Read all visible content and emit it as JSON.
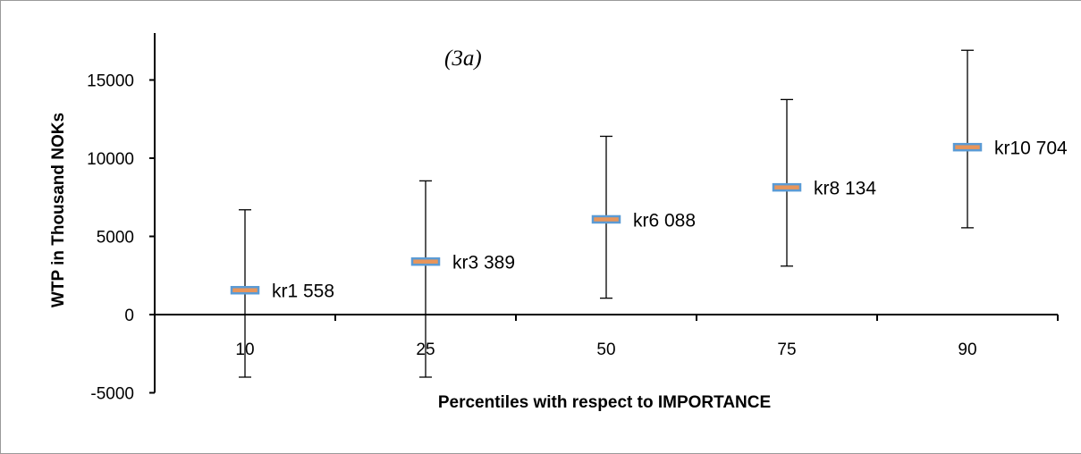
{
  "chart_data": {
    "type": "error-bar",
    "title": "(3a)",
    "xlabel": "Percentiles  with respect to IMPORTANCE",
    "ylabel": "WTP in Thousand NOKs",
    "ylim": [
      -5000,
      18000
    ],
    "yticks": [
      -5000,
      0,
      5000,
      10000,
      15000
    ],
    "categories": [
      "10",
      "25",
      "50",
      "75",
      "90"
    ],
    "points": [
      {
        "category": "10",
        "value": 1558,
        "low": -4000,
        "high": 6700,
        "label": "kr1 558"
      },
      {
        "category": "25",
        "value": 3389,
        "low": -4000,
        "high": 8550,
        "label": "kr3 389"
      },
      {
        "category": "50",
        "value": 6088,
        "low": 1050,
        "high": 11400,
        "label": "kr6 088"
      },
      {
        "category": "75",
        "value": 8134,
        "low": 3100,
        "high": 13750,
        "label": "kr8 134"
      },
      {
        "category": "90",
        "value": 10704,
        "low": 5550,
        "high": 16900,
        "label": "kr10 704"
      }
    ],
    "grid": false,
    "legend": "none",
    "colors": {
      "marker_fill": "#e8955a",
      "marker_edge": "#5b9bd5",
      "line": "#000000"
    }
  }
}
